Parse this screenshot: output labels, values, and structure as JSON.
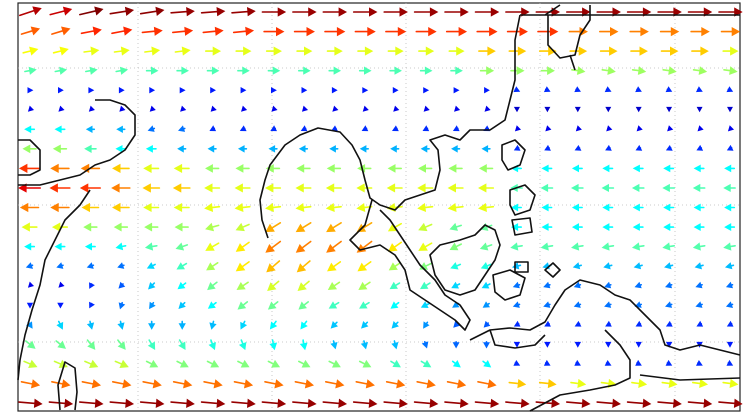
{
  "chart_data": {
    "type": "quiver",
    "u": [
      [
        12,
        12,
        13,
        13,
        13,
        13,
        13,
        13,
        13,
        13,
        13,
        13,
        13,
        13,
        13,
        13,
        13,
        13,
        13,
        13,
        13,
        13,
        13,
        13
      ],
      [
        10,
        10,
        11,
        11,
        11,
        11,
        11,
        11,
        11,
        11,
        11,
        11,
        11,
        11,
        11,
        11,
        11,
        11,
        10,
        10,
        10,
        10,
        10,
        10
      ],
      [
        8,
        8,
        8,
        8,
        8,
        8,
        8,
        8,
        8,
        8,
        8,
        8,
        8,
        8,
        8,
        9,
        9,
        9,
        9,
        9,
        9,
        9,
        9,
        8
      ],
      [
        6,
        6,
        6,
        6,
        6,
        6,
        6,
        6,
        6,
        6,
        6,
        6,
        6,
        6,
        6,
        7,
        7,
        7,
        7,
        7,
        7,
        7,
        7,
        7
      ],
      [
        2,
        2,
        2,
        2,
        2,
        2,
        2,
        2,
        2,
        2,
        2,
        2,
        2,
        2,
        2,
        2,
        2,
        2,
        2,
        2,
        2,
        2,
        2,
        2
      ],
      [
        -1,
        -1,
        -1,
        -1,
        -1,
        -1,
        -1,
        -1,
        -1,
        -1,
        -1,
        -1,
        -1,
        -1,
        -1,
        -1,
        0,
        0,
        0,
        0,
        0,
        0,
        0,
        0
      ],
      [
        -5,
        -5,
        -4,
        -4,
        -3,
        -3,
        -2,
        -2,
        -2,
        -2,
        -2,
        -2,
        -2,
        -2,
        -2,
        -2,
        -1,
        -1,
        -1,
        -1,
        -1,
        -1,
        -1,
        -1
      ],
      [
        -7,
        -7,
        -6,
        -5,
        -5,
        -4,
        -4,
        -4,
        -4,
        -4,
        -4,
        -4,
        -4,
        -4,
        -4,
        -4,
        -2,
        -2,
        -2,
        -2,
        -2,
        -2,
        -2,
        -2
      ],
      [
        -11,
        -10,
        -10,
        -9,
        -8,
        -8,
        -7,
        -7,
        -7,
        -7,
        -7,
        -7,
        -7,
        -7,
        -7,
        -7,
        -5,
        -5,
        -5,
        -5,
        -5,
        -5,
        -5,
        -5
      ],
      [
        -12,
        -11,
        -11,
        -10,
        -9,
        -9,
        -8,
        -8,
        -8,
        -8,
        -8,
        -8,
        -8,
        -8,
        -8,
        -8,
        -6,
        -6,
        -6,
        -6,
        -6,
        -6,
        -6,
        -6
      ],
      [
        -10,
        -10,
        -9,
        -9,
        -8,
        -8,
        -8,
        -8,
        -8,
        -8,
        -8,
        -8,
        -8,
        -8,
        -8,
        -8,
        -5,
        -5,
        -5,
        -5,
        -5,
        -5,
        -5,
        -5
      ],
      [
        -8,
        -8,
        -7,
        -7,
        -7,
        -7,
        -7,
        -7,
        -8,
        -8,
        -8,
        -8,
        -7,
        -7,
        -6,
        -6,
        -5,
        -5,
        -5,
        -5,
        -5,
        -5,
        -5,
        -5
      ],
      [
        -5,
        -5,
        -5,
        -5,
        -6,
        -6,
        -7,
        -7,
        -8,
        -8,
        -8,
        -8,
        -7,
        -7,
        -6,
        -6,
        -6,
        -6,
        -6,
        -6,
        -6,
        -6,
        -6,
        -6
      ],
      [
        -3,
        -3,
        -3,
        -3,
        -4,
        -5,
        -6,
        -7,
        -7,
        -7,
        -7,
        -7,
        -6,
        -6,
        -5,
        -5,
        -4,
        -4,
        -4,
        -4,
        -4,
        -4,
        -4,
        -4
      ],
      [
        -1,
        -1,
        -1,
        -2,
        -3,
        -4,
        -5,
        -6,
        -6,
        -6,
        -6,
        -6,
        -5,
        -5,
        -4,
        -4,
        -3,
        -3,
        -3,
        -3,
        -3,
        -3,
        -3,
        -3
      ],
      [
        0,
        0,
        -1,
        -1,
        -2,
        -3,
        -4,
        -5,
        -5,
        -5,
        -5,
        -5,
        -4,
        -4,
        -3,
        -3,
        -3,
        -3,
        -3,
        -3,
        -3,
        -3,
        -3,
        -3
      ],
      [
        2,
        2,
        1,
        1,
        0,
        0,
        -1,
        -2,
        -3,
        -3,
        -3,
        -3,
        -3,
        -2,
        -2,
        -2,
        -2,
        -2,
        -2,
        -2,
        -2,
        -2,
        -2,
        -2
      ],
      [
        5,
        5,
        4,
        4,
        3,
        3,
        2,
        2,
        1,
        1,
        1,
        1,
        1,
        1,
        0,
        0,
        0,
        0,
        0,
        0,
        0,
        0,
        0,
        0
      ],
      [
        7,
        7,
        7,
        7,
        6,
        6,
        6,
        6,
        6,
        6,
        6,
        6,
        5,
        5,
        4,
        4,
        2,
        2,
        2,
        2,
        2,
        2,
        2,
        2
      ],
      [
        10,
        10,
        10,
        10,
        10,
        10,
        10,
        10,
        10,
        10,
        10,
        10,
        10,
        10,
        10,
        10,
        9,
        9,
        8,
        8,
        8,
        8,
        8,
        8
      ],
      [
        13,
        13,
        13,
        13,
        13,
        13,
        13,
        13,
        13,
        13,
        13,
        13,
        13,
        13,
        13,
        13,
        13,
        13,
        13,
        13,
        13,
        13,
        13,
        13
      ]
    ],
    "v": [
      [
        4,
        3,
        3,
        2,
        2,
        1,
        1,
        1,
        0,
        0,
        0,
        0,
        0,
        0,
        0,
        0,
        0,
        0,
        0,
        0,
        0,
        0,
        0,
        0
      ],
      [
        3,
        3,
        2,
        2,
        1,
        1,
        1,
        1,
        0,
        0,
        0,
        0,
        0,
        0,
        0,
        0,
        0,
        0,
        0,
        0,
        0,
        0,
        0,
        0
      ],
      [
        2,
        2,
        1,
        1,
        1,
        1,
        0,
        0,
        0,
        0,
        0,
        0,
        0,
        0,
        0,
        0,
        0,
        0,
        0,
        0,
        0,
        0,
        0,
        0
      ],
      [
        1,
        1,
        1,
        1,
        0,
        0,
        0,
        0,
        0,
        0,
        0,
        0,
        0,
        0,
        0,
        0,
        0,
        0,
        -1,
        -1,
        -1,
        -1,
        -1,
        -1
      ],
      [
        0,
        0,
        0,
        0,
        0,
        0,
        0,
        0,
        0,
        0,
        0,
        0,
        0,
        0,
        0,
        0,
        -1,
        -1,
        -1,
        -1,
        -1,
        -1,
        -1,
        -1
      ],
      [
        -1,
        -1,
        -1,
        -1,
        -1,
        -1,
        -1,
        -1,
        -1,
        -1,
        -1,
        -1,
        -1,
        -1,
        -1,
        -1,
        -1,
        -1,
        -1,
        -1,
        -1,
        -1,
        -1,
        -1
      ],
      [
        0,
        0,
        0,
        0,
        -1,
        -1,
        -1,
        -1,
        -1,
        -1,
        -1,
        -1,
        -1,
        -1,
        -1,
        -1,
        -1,
        -1,
        -1,
        -1,
        -1,
        -1,
        -1,
        -1
      ],
      [
        0,
        0,
        0,
        0,
        0,
        0,
        0,
        0,
        0,
        0,
        0,
        0,
        0,
        0,
        0,
        0,
        -1,
        -1,
        -1,
        -1,
        -1,
        -1,
        -1,
        -1
      ],
      [
        0,
        0,
        0,
        0,
        0,
        0,
        0,
        0,
        0,
        0,
        0,
        0,
        0,
        0,
        0,
        0,
        0,
        0,
        0,
        0,
        0,
        0,
        0,
        0
      ],
      [
        0,
        0,
        0,
        0,
        0,
        0,
        0,
        0,
        0,
        0,
        0,
        0,
        0,
        0,
        0,
        0,
        0,
        0,
        0,
        0,
        0,
        0,
        0,
        0
      ],
      [
        0,
        0,
        0,
        0,
        0,
        0,
        -1,
        -1,
        -1,
        -1,
        -1,
        -1,
        -1,
        -1,
        -1,
        -1,
        0,
        0,
        0,
        0,
        0,
        0,
        0,
        0
      ],
      [
        0,
        0,
        0,
        0,
        0,
        0,
        -2,
        -3,
        -5,
        -5,
        -5,
        -5,
        -4,
        -3,
        -2,
        -2,
        0,
        0,
        0,
        0,
        0,
        0,
        0,
        0
      ],
      [
        0,
        0,
        0,
        -1,
        -1,
        -2,
        -4,
        -5,
        -6,
        -6,
        -6,
        -6,
        -5,
        -4,
        -3,
        -2,
        -1,
        -1,
        -1,
        -1,
        -1,
        -1,
        -1,
        -1
      ],
      [
        -1,
        -1,
        -1,
        -1,
        -2,
        -3,
        -4,
        -5,
        -6,
        -6,
        -5,
        -5,
        -4,
        -3,
        -2,
        -2,
        -1,
        -1,
        -1,
        -1,
        -1,
        -1,
        -1,
        -1
      ],
      [
        -1,
        -1,
        -2,
        -2,
        -3,
        -3,
        -4,
        -4,
        -5,
        -5,
        -4,
        -4,
        -3,
        -3,
        -2,
        -2,
        -1,
        -1,
        -1,
        -1,
        -1,
        -1,
        -1,
        -1
      ],
      [
        -2,
        -2,
        -2,
        -3,
        -3,
        -3,
        -3,
        -4,
        -4,
        -4,
        -3,
        -3,
        -3,
        -2,
        -2,
        -2,
        -1,
        -1,
        -1,
        -1,
        -1,
        -1,
        -1,
        -1
      ],
      [
        -3,
        -4,
        -4,
        -4,
        -4,
        -4,
        -4,
        -4,
        -4,
        -4,
        -3,
        -3,
        -3,
        -3,
        -2,
        -2,
        -1,
        -1,
        -1,
        -1,
        -1,
        -1,
        -1,
        -1
      ],
      [
        -4,
        -4,
        -5,
        -5,
        -5,
        -5,
        -5,
        -5,
        -5,
        -5,
        -4,
        -4,
        -4,
        -3,
        -3,
        -3,
        -2,
        -2,
        -2,
        -2,
        -2,
        -2,
        -2,
        -2
      ],
      [
        -3,
        -3,
        -3,
        -3,
        -3,
        -3,
        -3,
        -3,
        -3,
        -3,
        -3,
        -3,
        -3,
        -3,
        -3,
        -3,
        -1,
        -1,
        -1,
        -1,
        -1,
        -1,
        -1,
        -1
      ],
      [
        -2,
        -2,
        -2,
        -2,
        -2,
        -2,
        -2,
        -2,
        -2,
        -2,
        -2,
        -2,
        -2,
        -2,
        -2,
        -2,
        -1,
        -1,
        -1,
        -1,
        -1,
        -1,
        -1,
        -1
      ],
      [
        -1,
        -1,
        -1,
        -1,
        -1,
        -1,
        -1,
        -1,
        -1,
        -1,
        -1,
        -1,
        -1,
        -1,
        -1,
        -1,
        -1,
        -1,
        -1,
        -1,
        -1,
        -1,
        -1,
        -1
      ]
    ]
  }
}
